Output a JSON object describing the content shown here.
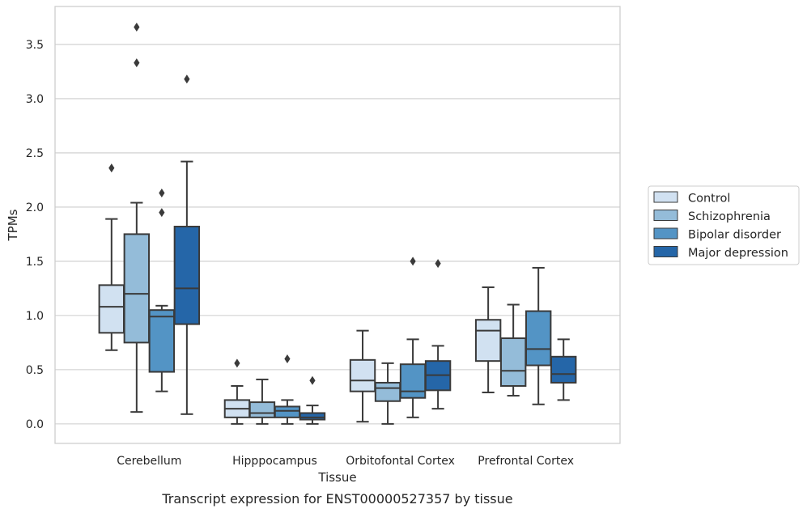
{
  "caption": "Transcript expression for ENST00000527357 by tissue",
  "chart_data": {
    "type": "box",
    "xlabel": "Tissue",
    "ylabel": "TPMs",
    "ylim": [
      -0.18,
      3.85
    ],
    "yticks": [
      "0.0",
      "0.5",
      "1.0",
      "1.5",
      "2.0",
      "2.5",
      "3.0",
      "3.5"
    ],
    "grid": true,
    "legend_position": "right",
    "categories": [
      "Cerebellum",
      "Hipppocampus",
      "Orbitofontal Cortex",
      "Prefrontal Cortex"
    ],
    "series": [
      {
        "name": "Control",
        "color": "#d1e1f1",
        "boxes": [
          {
            "whislo": 0.68,
            "q1": 0.84,
            "med": 1.08,
            "q3": 1.28,
            "whishi": 1.89,
            "fliers": [
              2.36
            ]
          },
          {
            "whislo": 0.0,
            "q1": 0.06,
            "med": 0.14,
            "q3": 0.22,
            "whishi": 0.35,
            "fliers": [
              0.56
            ]
          },
          {
            "whislo": 0.02,
            "q1": 0.3,
            "med": 0.4,
            "q3": 0.59,
            "whishi": 0.86,
            "fliers": []
          },
          {
            "whislo": 0.29,
            "q1": 0.58,
            "med": 0.86,
            "q3": 0.96,
            "whishi": 1.26,
            "fliers": []
          }
        ]
      },
      {
        "name": "Schizophrenia",
        "color": "#94bcd9",
        "boxes": [
          {
            "whislo": 0.11,
            "q1": 0.75,
            "med": 1.2,
            "q3": 1.75,
            "whishi": 2.04,
            "fliers": [
              3.66,
              3.33
            ]
          },
          {
            "whislo": 0.0,
            "q1": 0.06,
            "med": 0.1,
            "q3": 0.2,
            "whishi": 0.41,
            "fliers": []
          },
          {
            "whislo": 0.0,
            "q1": 0.21,
            "med": 0.33,
            "q3": 0.38,
            "whishi": 0.56,
            "fliers": []
          },
          {
            "whislo": 0.26,
            "q1": 0.35,
            "med": 0.49,
            "q3": 0.79,
            "whishi": 1.1,
            "fliers": []
          }
        ]
      },
      {
        "name": "Bipolar disorder",
        "color": "#5394c5",
        "boxes": [
          {
            "whislo": 0.3,
            "q1": 0.48,
            "med": 0.99,
            "q3": 1.05,
            "whishi": 1.09,
            "fliers": [
              2.13,
              1.95
            ]
          },
          {
            "whislo": 0.0,
            "q1": 0.06,
            "med": 0.12,
            "q3": 0.16,
            "whishi": 0.22,
            "fliers": [
              0.6
            ]
          },
          {
            "whislo": 0.06,
            "q1": 0.24,
            "med": 0.3,
            "q3": 0.55,
            "whishi": 0.78,
            "fliers": [
              1.5
            ]
          },
          {
            "whislo": 0.18,
            "q1": 0.54,
            "med": 0.69,
            "q3": 1.04,
            "whishi": 1.44,
            "fliers": []
          }
        ]
      },
      {
        "name": "Major depression",
        "color": "#2566a8",
        "boxes": [
          {
            "whislo": 0.09,
            "q1": 0.92,
            "med": 1.25,
            "q3": 1.82,
            "whishi": 2.42,
            "fliers": [
              3.18
            ]
          },
          {
            "whislo": 0.0,
            "q1": 0.04,
            "med": 0.06,
            "q3": 0.1,
            "whishi": 0.17,
            "fliers": [
              0.4
            ]
          },
          {
            "whislo": 0.14,
            "q1": 0.31,
            "med": 0.45,
            "q3": 0.58,
            "whishi": 0.72,
            "fliers": [
              1.48
            ]
          },
          {
            "whislo": 0.22,
            "q1": 0.38,
            "med": 0.46,
            "q3": 0.62,
            "whishi": 0.78,
            "fliers": []
          }
        ]
      }
    ]
  }
}
